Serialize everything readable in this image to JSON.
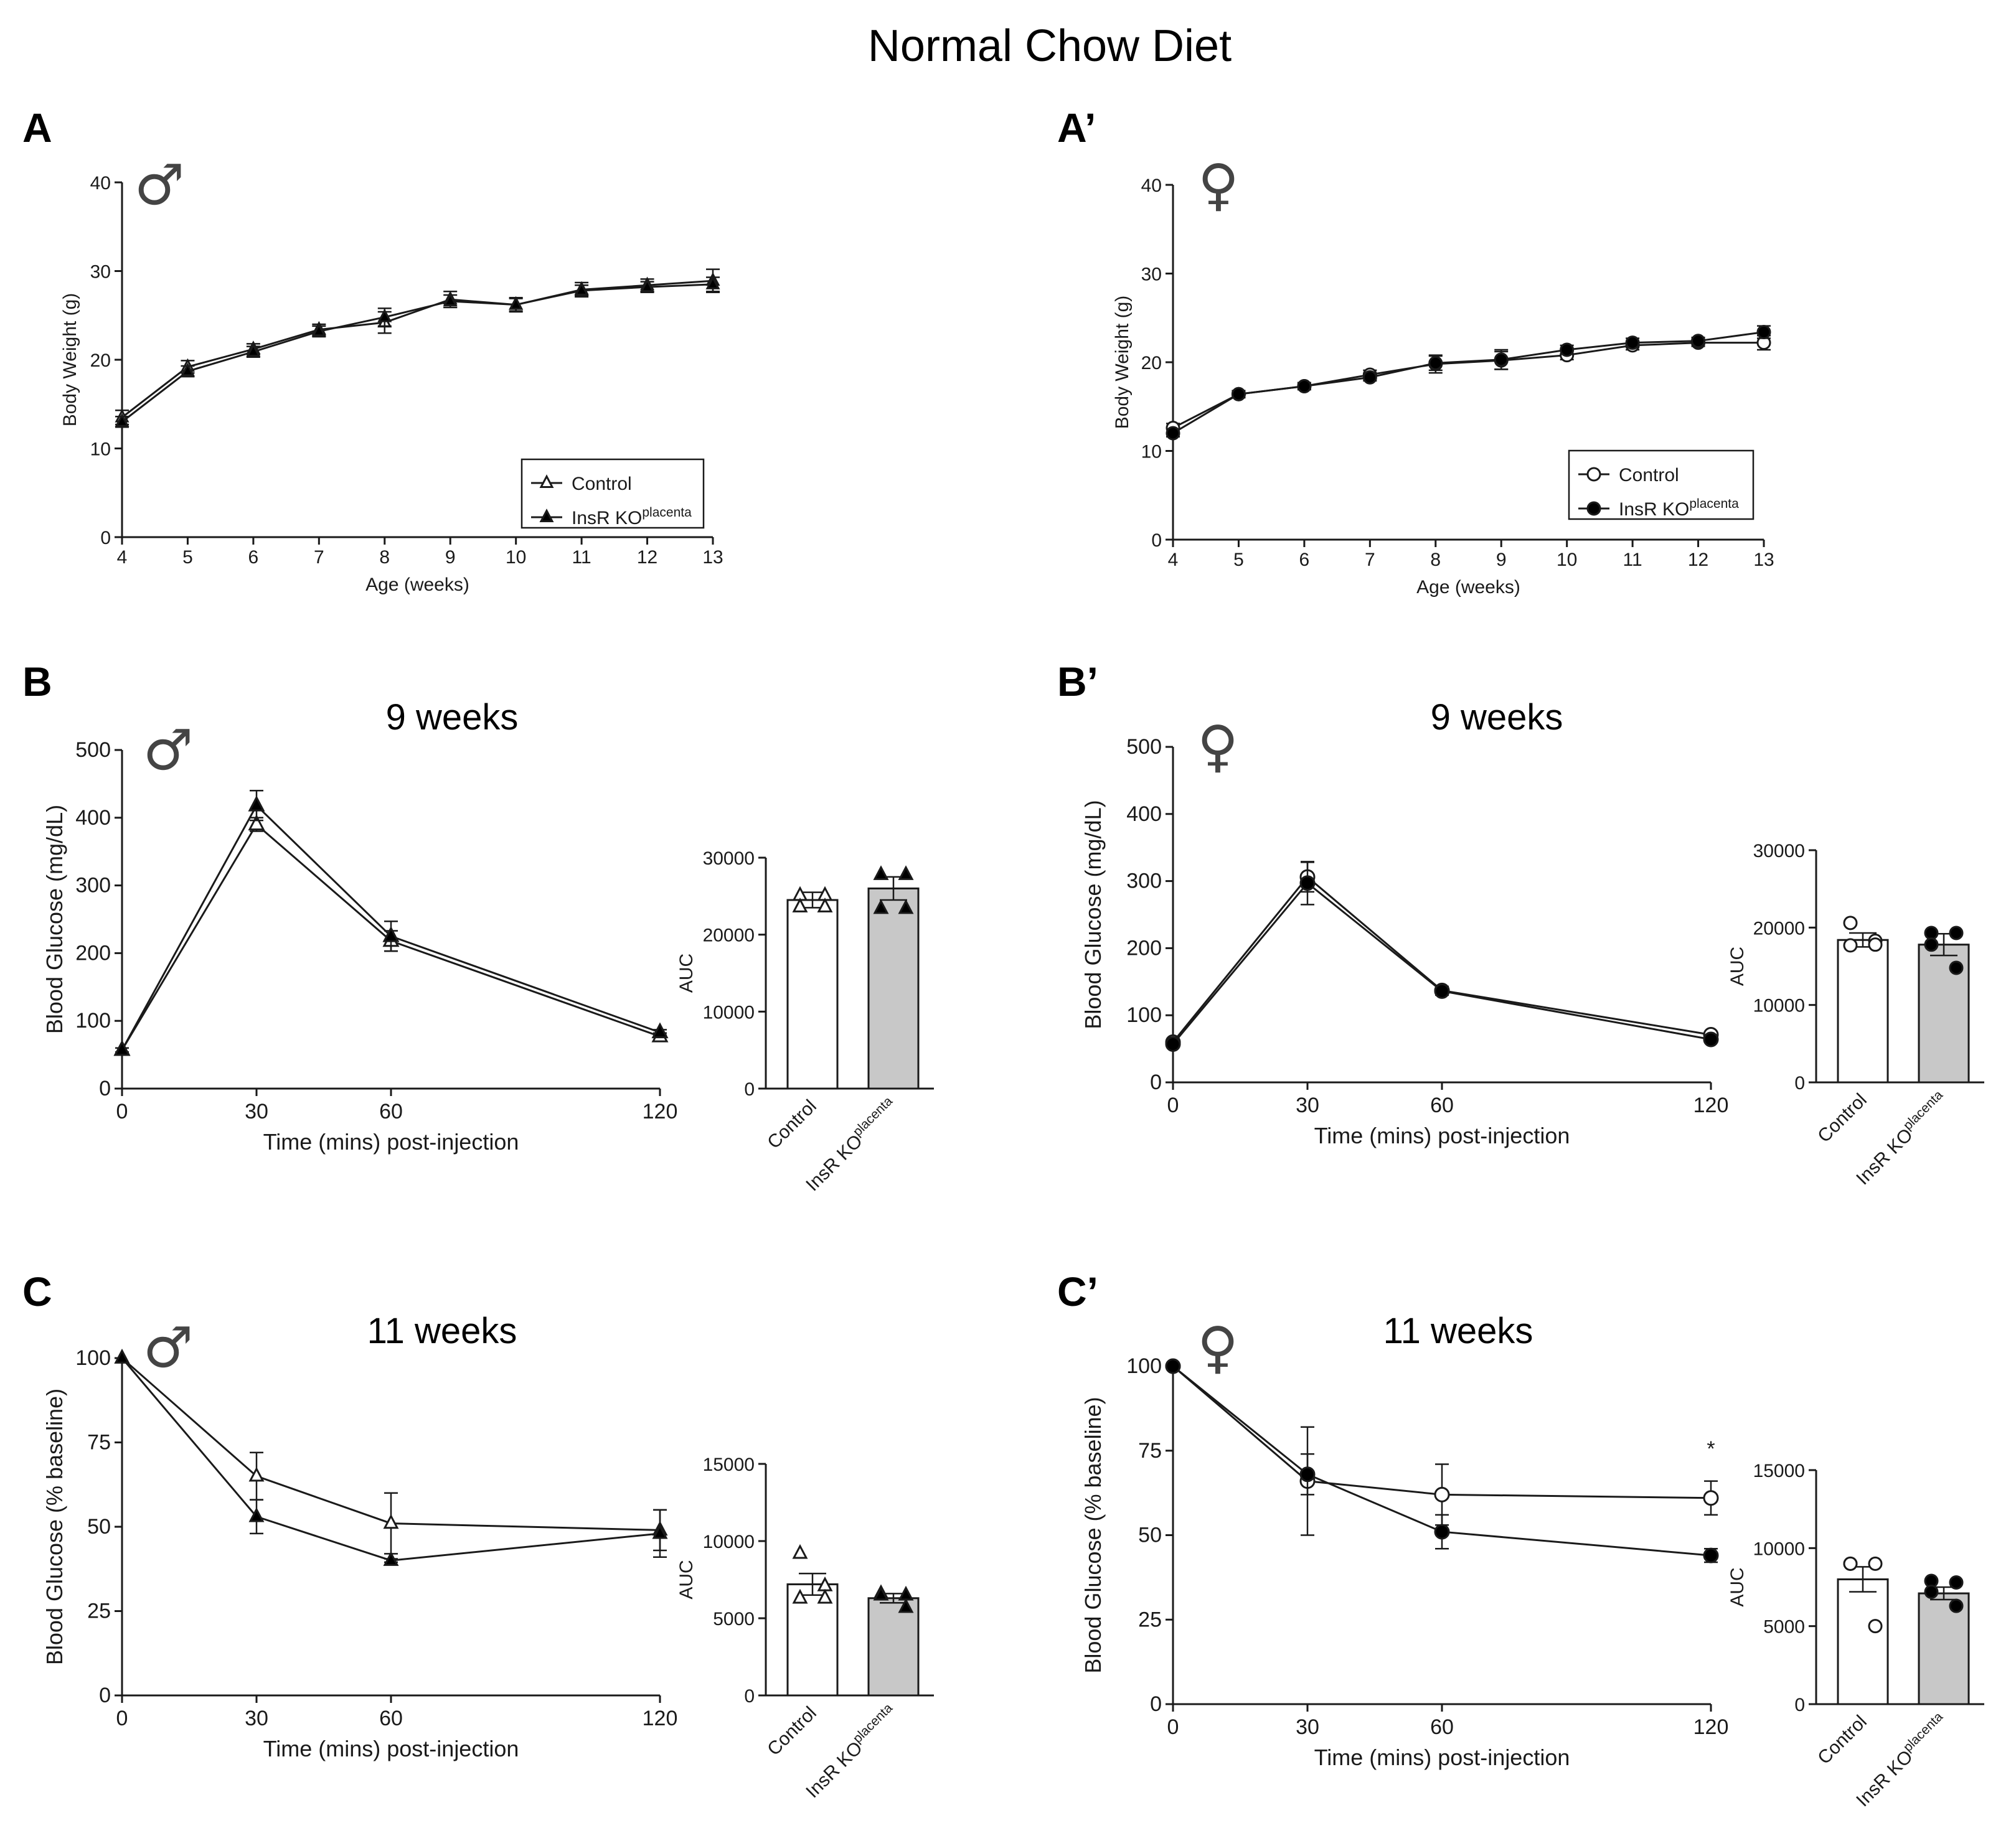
{
  "title": "Normal Chow Diet",
  "colors": {
    "control_fill": "#ffffff",
    "ko_fill": "#000000",
    "ko_bar": "#c8c8c8",
    "axis": "#1a1a1a"
  },
  "chart_data": [
    {
      "id": "A",
      "panel_letter": "A",
      "type": "line",
      "sex_symbol": "♂",
      "title": "",
      "xlabel": "Age (weeks)",
      "ylabel": "Body Weight (g)",
      "x": [
        4,
        5,
        6,
        7,
        8,
        9,
        10,
        11,
        12,
        13
      ],
      "xlim": [
        4,
        13
      ],
      "ylim": [
        0,
        40
      ],
      "xticks": [
        4,
        5,
        6,
        7,
        8,
        9,
        10,
        11,
        12,
        13
      ],
      "yticks": [
        0,
        10,
        20,
        30,
        40
      ],
      "legend": "bottom-right",
      "series": [
        {
          "name": "Control",
          "marker": "triangle-open",
          "values": [
            13.5,
            19.2,
            21.2,
            23.4,
            24.2,
            26.8,
            26.2,
            27.9,
            28.4,
            28.9
          ],
          "errors": [
            0.8,
            0.7,
            0.6,
            0.6,
            1.2,
            0.9,
            0.8,
            0.8,
            0.7,
            1.3
          ]
        },
        {
          "name": "InsR KO",
          "name_sup": "placenta",
          "marker": "triangle-filled",
          "values": [
            13.0,
            18.7,
            20.9,
            23.2,
            24.8,
            26.6,
            26.2,
            27.8,
            28.2,
            28.5
          ],
          "errors": [
            0.6,
            0.6,
            0.6,
            0.6,
            1.0,
            0.7,
            0.7,
            0.6,
            0.6,
            0.8
          ]
        }
      ]
    },
    {
      "id": "A2",
      "panel_letter": "A’",
      "type": "line",
      "sex_symbol": "♀",
      "title": "",
      "xlabel": "Age (weeks)",
      "ylabel": "Body Weight (g)",
      "x": [
        4,
        5,
        6,
        7,
        8,
        9,
        10,
        11,
        12,
        13
      ],
      "xlim": [
        4,
        13
      ],
      "ylim": [
        0,
        40
      ],
      "xticks": [
        4,
        5,
        6,
        7,
        8,
        9,
        10,
        11,
        12,
        13
      ],
      "yticks": [
        0,
        10,
        20,
        30,
        40
      ],
      "legend": "bottom-right",
      "series": [
        {
          "name": "Control",
          "marker": "circle-open",
          "values": [
            12.6,
            16.4,
            17.3,
            18.6,
            19.8,
            20.2,
            20.8,
            21.9,
            22.2,
            22.2
          ],
          "errors": [
            0.5,
            0.4,
            0.4,
            0.5,
            1.0,
            1.0,
            0.5,
            0.5,
            0.4,
            0.8
          ]
        },
        {
          "name": "InsR KO",
          "name_sup": "placenta",
          "marker": "circle-filled",
          "values": [
            12.0,
            16.4,
            17.3,
            18.3,
            19.9,
            20.3,
            21.4,
            22.2,
            22.4,
            23.4
          ],
          "errors": [
            0.4,
            0.3,
            0.3,
            0.4,
            0.8,
            1.1,
            0.5,
            0.5,
            0.4,
            0.7
          ]
        }
      ]
    },
    {
      "id": "B",
      "panel_letter": "B",
      "type": "line",
      "sex_symbol": "♂",
      "title": "9 weeks",
      "xlabel": "Time (mins) post-injection",
      "ylabel": "Blood Glucose (mg/dL)",
      "x": [
        0,
        30,
        60,
        120
      ],
      "xlim": [
        0,
        120
      ],
      "ylim": [
        0,
        500
      ],
      "xticks": [
        0,
        30,
        60,
        120
      ],
      "yticks": [
        0,
        100,
        200,
        300,
        400,
        500
      ],
      "series": [
        {
          "name": "Control",
          "marker": "triangle-open",
          "values": [
            57,
            390,
            218,
            77
          ],
          "errors": [
            3,
            10,
            15,
            5
          ]
        },
        {
          "name": "InsR KO",
          "marker": "triangle-filled",
          "values": [
            57,
            418,
            225,
            83
          ],
          "errors": [
            3,
            22,
            22,
            4
          ]
        }
      ]
    },
    {
      "id": "B_auc",
      "type": "bar",
      "ylabel": "AUC",
      "categories": [
        "Control",
        "InsR KO"
      ],
      "category_sup": [
        "",
        "placenta"
      ],
      "values": [
        24500,
        26000
      ],
      "errors": [
        1000,
        1500
      ],
      "ylim": [
        0,
        30000
      ],
      "yticks": [
        0,
        10000,
        20000,
        30000
      ],
      "points": [
        [
          25100,
          25100,
          23600,
          23600
        ],
        [
          27800,
          27800,
          23400,
          23400
        ]
      ],
      "markers": [
        "triangle-open",
        "triangle-filled"
      ]
    },
    {
      "id": "B2",
      "panel_letter": "B’",
      "type": "line",
      "sex_symbol": "♀",
      "title": "9 weeks",
      "xlabel": "Time (mins) post-injection",
      "ylabel": "Blood Glucose (mg/dL)",
      "x": [
        0,
        30,
        60,
        120
      ],
      "xlim": [
        0,
        120
      ],
      "ylim": [
        0,
        500
      ],
      "xticks": [
        0,
        30,
        60,
        120
      ],
      "yticks": [
        0,
        100,
        200,
        300,
        400,
        500
      ],
      "series": [
        {
          "name": "Control",
          "marker": "circle-open",
          "values": [
            60,
            306,
            137,
            71
          ],
          "errors": [
            3,
            22,
            6,
            3
          ]
        },
        {
          "name": "InsR KO",
          "marker": "circle-filled",
          "values": [
            57,
            297,
            136,
            64
          ],
          "errors": [
            3,
            32,
            6,
            3
          ]
        }
      ]
    },
    {
      "id": "B2_auc",
      "type": "bar",
      "ylabel": "AUC",
      "categories": [
        "Control",
        "InsR KO"
      ],
      "category_sup": [
        "",
        "placenta"
      ],
      "values": [
        18400,
        17800
      ],
      "errors": [
        900,
        1400
      ],
      "ylim": [
        0,
        30000
      ],
      "yticks": [
        0,
        10000,
        20000,
        30000
      ],
      "points": [
        [
          20600,
          18300,
          17700,
          17800
        ],
        [
          19300,
          19300,
          17800,
          14800
        ]
      ],
      "markers": [
        "circle-open",
        "circle-filled"
      ]
    },
    {
      "id": "C",
      "panel_letter": "C",
      "type": "line",
      "sex_symbol": "♂",
      "title": "11 weeks",
      "xlabel": "Time (mins) post-injection",
      "ylabel": "Blood Glucose (% baseline)",
      "x": [
        0,
        30,
        60,
        120
      ],
      "xlim": [
        0,
        120
      ],
      "ylim": [
        0,
        100
      ],
      "xticks": [
        0,
        30,
        60,
        120
      ],
      "yticks": [
        0,
        25,
        50,
        75,
        100
      ],
      "series": [
        {
          "name": "Control",
          "marker": "triangle-open",
          "values": [
            100,
            65,
            51,
            49
          ],
          "errors": [
            0,
            7,
            9,
            6
          ]
        },
        {
          "name": "InsR KO",
          "marker": "triangle-filled",
          "values": [
            100,
            53,
            40,
            48
          ],
          "errors": [
            0,
            5,
            0.5,
            7
          ]
        }
      ]
    },
    {
      "id": "C_auc",
      "type": "bar",
      "ylabel": "AUC",
      "categories": [
        "Control",
        "InsR KO"
      ],
      "category_sup": [
        "",
        "placenta"
      ],
      "values": [
        7200,
        6300
      ],
      "errors": [
        700,
        300
      ],
      "ylim": [
        0,
        15000
      ],
      "yticks": [
        0,
        5000,
        10000,
        15000
      ],
      "points": [
        [
          9200,
          7100,
          6300,
          6300
        ],
        [
          6600,
          6500,
          6500,
          5700
        ]
      ],
      "markers": [
        "triangle-open",
        "triangle-filled"
      ]
    },
    {
      "id": "C2",
      "panel_letter": "C’",
      "type": "line",
      "sex_symbol": "♀",
      "title": "11 weeks",
      "xlabel": "Time (mins) post-injection",
      "ylabel": "Blood Glucose (% baseline)",
      "x": [
        0,
        30,
        60,
        120
      ],
      "xlim": [
        0,
        120
      ],
      "ylim": [
        0,
        100
      ],
      "xticks": [
        0,
        30,
        60,
        120
      ],
      "yticks": [
        0,
        25,
        50,
        75,
        100
      ],
      "annotation": "*",
      "series": [
        {
          "name": "Control",
          "marker": "circle-open",
          "values": [
            100,
            66,
            62,
            61
          ],
          "errors": [
            0,
            16,
            9,
            5
          ]
        },
        {
          "name": "InsR KO",
          "marker": "circle-filled",
          "values": [
            100,
            68,
            51,
            44
          ],
          "errors": [
            0,
            6,
            5,
            2
          ]
        }
      ]
    },
    {
      "id": "C2_auc",
      "type": "bar",
      "ylabel": "AUC",
      "categories": [
        "Control",
        "InsR KO"
      ],
      "category_sup": [
        "",
        "placenta"
      ],
      "values": [
        8000,
        7100
      ],
      "errors": [
        800,
        400
      ],
      "ylim": [
        0,
        15000
      ],
      "yticks": [
        0,
        5000,
        10000,
        15000
      ],
      "points": [
        [
          9000,
          9000,
          9000,
          5000
        ],
        [
          7900,
          7800,
          7200,
          6300
        ]
      ],
      "markers": [
        "circle-open",
        "circle-filled"
      ]
    }
  ]
}
